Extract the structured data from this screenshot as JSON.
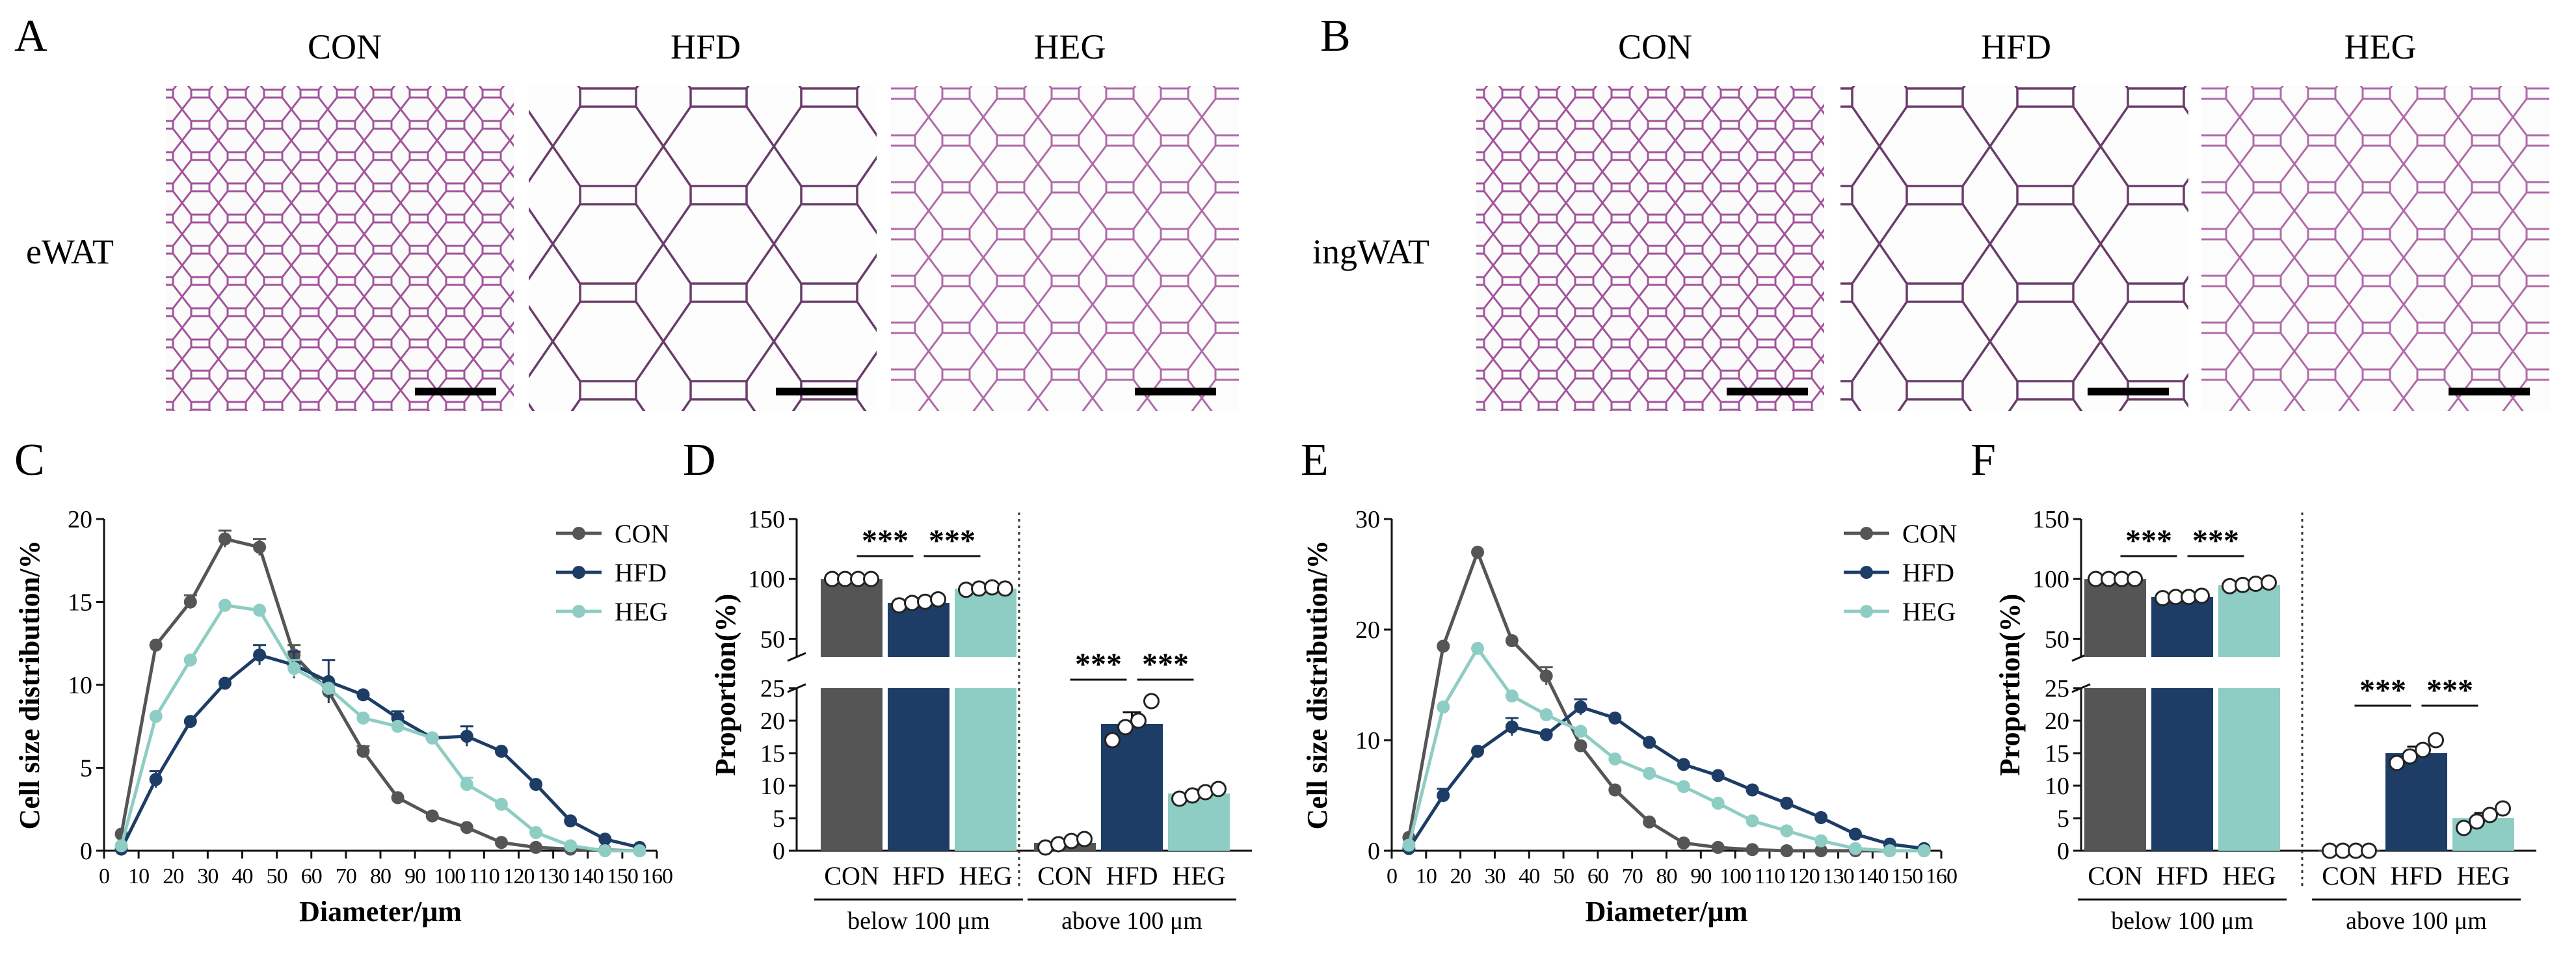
{
  "colors": {
    "con": "#555555",
    "hfd": "#1d3d66",
    "heg": "#8ecdc3",
    "stain": "#b15aa8",
    "scalebar": "#000000"
  },
  "panelA": {
    "letter": "A",
    "row_label": "eWAT",
    "images": [
      {
        "title": "CON",
        "cell_size": "small",
        "scalebar": true
      },
      {
        "title": "HFD",
        "cell_size": "large",
        "scalebar": true
      },
      {
        "title": "HEG",
        "cell_size": "medium",
        "scalebar": true
      }
    ]
  },
  "panelB": {
    "letter": "B",
    "row_label": "ingWAT",
    "images": [
      {
        "title": "CON",
        "cell_size": "small",
        "scalebar": true
      },
      {
        "title": "HFD",
        "cell_size": "large",
        "scalebar": true
      },
      {
        "title": "HEG",
        "cell_size": "medium",
        "scalebar": true
      }
    ]
  },
  "chart_data": [
    {
      "panel": "C",
      "type": "line",
      "xlabel": "Diameter/μm",
      "ylabel": "Cell size distribution/%",
      "xlim": [
        0,
        160
      ],
      "ylim": [
        0,
        20
      ],
      "xticks": [
        "0",
        "10",
        "20",
        "30",
        "40",
        "50",
        "60",
        "70",
        "80",
        "90",
        "100",
        "110",
        "120",
        "130",
        "140",
        "150",
        "160"
      ],
      "yticks": [
        "0",
        "5",
        "10",
        "15",
        "20"
      ],
      "x": [
        5,
        15,
        25,
        35,
        45,
        55,
        65,
        75,
        85,
        95,
        105,
        115,
        125,
        135,
        145,
        155
      ],
      "series": [
        {
          "name": "CON",
          "color": "#555555",
          "values": [
            1.0,
            12.4,
            15.0,
            18.8,
            18.3,
            11.8,
            9.6,
            6.0,
            3.2,
            2.1,
            1.4,
            0.5,
            0.2,
            0.1,
            0.05,
            0
          ],
          "errors": [
            0,
            0,
            0.4,
            0.5,
            0.5,
            0.6,
            0.5,
            0.3,
            0,
            0,
            0,
            0,
            0,
            0,
            0,
            0
          ]
        },
        {
          "name": "HFD",
          "color": "#1d3d66",
          "values": [
            0.1,
            4.3,
            7.8,
            10.1,
            11.8,
            11.2,
            10.2,
            9.4,
            8.0,
            6.8,
            6.9,
            6.0,
            4.0,
            1.8,
            0.7,
            0.2
          ],
          "errors": [
            0,
            0.5,
            0,
            0,
            0.6,
            0.8,
            1.3,
            0,
            0.4,
            0,
            0.6,
            0,
            0,
            0,
            0,
            0
          ]
        },
        {
          "name": "HEG",
          "color": "#8ecdc3",
          "values": [
            0.3,
            8.1,
            11.5,
            14.8,
            14.5,
            11.0,
            9.8,
            8.0,
            7.5,
            6.8,
            4.0,
            2.8,
            1.1,
            0.3,
            0,
            0
          ],
          "errors": [
            0,
            0,
            0,
            0,
            0,
            0.5,
            0,
            0,
            0,
            0,
            0.4,
            0,
            0,
            0,
            0,
            0
          ]
        }
      ]
    },
    {
      "panel": "D",
      "type": "bar",
      "ylabel": "Proportion(%)",
      "groups": [
        {
          "label": "below 100 μm",
          "categories": [
            "CON",
            "HFD",
            "HEG"
          ],
          "values": [
            100,
            80,
            92
          ],
          "errors": [
            0,
            2,
            1
          ],
          "points": [
            [
              100,
              100,
              100,
              100
            ],
            [
              78,
              80,
              81,
              83
            ],
            [
              91,
              92,
              93,
              92
            ]
          ],
          "significance": [
            "***",
            "***"
          ]
        },
        {
          "label": "above 100 μm",
          "categories": [
            "CON",
            "HFD",
            "HEG"
          ],
          "values": [
            1.2,
            19.5,
            8.8
          ],
          "errors": [
            0.3,
            1.8,
            0.6
          ],
          "points": [
            [
              0.5,
              1.0,
              1.5,
              1.8
            ],
            [
              17,
              19,
              20,
              23
            ],
            [
              8,
              8.5,
              9,
              9.5
            ]
          ],
          "significance": [
            "***",
            "***"
          ]
        }
      ],
      "axis_break": [
        25,
        35
      ],
      "lower_ticks": [
        "0",
        "5",
        "10",
        "15",
        "20",
        "25"
      ],
      "upper_ticks": [
        "50",
        "100",
        "150"
      ],
      "colors": [
        "#555555",
        "#1d3d66",
        "#8ecdc3"
      ]
    },
    {
      "panel": "E",
      "type": "line",
      "xlabel": "Diameter/μm",
      "ylabel": "Cell size distribution/%",
      "xlim": [
        0,
        160
      ],
      "ylim": [
        0,
        30
      ],
      "xticks": [
        "0",
        "10",
        "20",
        "30",
        "40",
        "50",
        "60",
        "70",
        "80",
        "90",
        "100",
        "110",
        "120",
        "130",
        "140",
        "150",
        "160"
      ],
      "yticks": [
        "0",
        "10",
        "20",
        "30"
      ],
      "x": [
        5,
        15,
        25,
        35,
        45,
        55,
        65,
        75,
        85,
        95,
        105,
        115,
        125,
        135,
        145,
        155
      ],
      "series": [
        {
          "name": "CON",
          "color": "#555555",
          "values": [
            1.2,
            18.5,
            27.0,
            19.0,
            15.8,
            9.5,
            5.5,
            2.6,
            0.7,
            0.3,
            0.1,
            0,
            0,
            0,
            0,
            0
          ],
          "errors": [
            0,
            0,
            0,
            0,
            0.8,
            0,
            0,
            0,
            0,
            0,
            0,
            0,
            0,
            0,
            0,
            0
          ]
        },
        {
          "name": "HFD",
          "color": "#1d3d66",
          "values": [
            0.2,
            5.0,
            9.0,
            11.2,
            10.5,
            13.0,
            12.0,
            9.8,
            7.8,
            6.8,
            5.5,
            4.3,
            3.0,
            1.5,
            0.6,
            0.2
          ],
          "errors": [
            0,
            0.6,
            0,
            0.8,
            0,
            0.7,
            0,
            0,
            0,
            0,
            0,
            0,
            0,
            0,
            0,
            0
          ]
        },
        {
          "name": "HEG",
          "color": "#8ecdc3",
          "values": [
            0.5,
            13.0,
            18.3,
            14.0,
            12.3,
            10.8,
            8.3,
            7.0,
            5.8,
            4.3,
            2.7,
            1.8,
            0.9,
            0.2,
            0,
            0
          ],
          "errors": [
            0,
            0,
            0,
            0,
            0,
            0,
            0,
            0,
            0,
            0,
            0,
            0,
            0,
            0,
            0,
            0
          ]
        }
      ]
    },
    {
      "panel": "F",
      "type": "bar",
      "ylabel": "Proportion(%)",
      "groups": [
        {
          "label": "below 100 μm",
          "categories": [
            "CON",
            "HFD",
            "HEG"
          ],
          "values": [
            100,
            85,
            95
          ],
          "errors": [
            0,
            1,
            1
          ],
          "points": [
            [
              100,
              100,
              100,
              100
            ],
            [
              84,
              85,
              85,
              86
            ],
            [
              94,
              95,
              96,
              97
            ]
          ],
          "significance": [
            "***",
            "***"
          ]
        },
        {
          "label": "above 100 μm",
          "categories": [
            "CON",
            "HFD",
            "HEG"
          ],
          "values": [
            0.1,
            15.0,
            5.0
          ],
          "errors": [
            0,
            1.0,
            0.8
          ],
          "points": [
            [
              0,
              0,
              0,
              0
            ],
            [
              13.5,
              14.5,
              15.5,
              17
            ],
            [
              3.5,
              4.5,
              5.5,
              6.5
            ]
          ],
          "significance": [
            "***",
            "***"
          ]
        }
      ],
      "axis_break": [
        25,
        35
      ],
      "lower_ticks": [
        "0",
        "5",
        "10",
        "15",
        "20",
        "25"
      ],
      "upper_ticks": [
        "50",
        "100",
        "150"
      ],
      "colors": [
        "#555555",
        "#1d3d66",
        "#8ecdc3"
      ]
    }
  ],
  "labels": {
    "C": "C",
    "D": "D",
    "E": "E",
    "F": "F"
  }
}
